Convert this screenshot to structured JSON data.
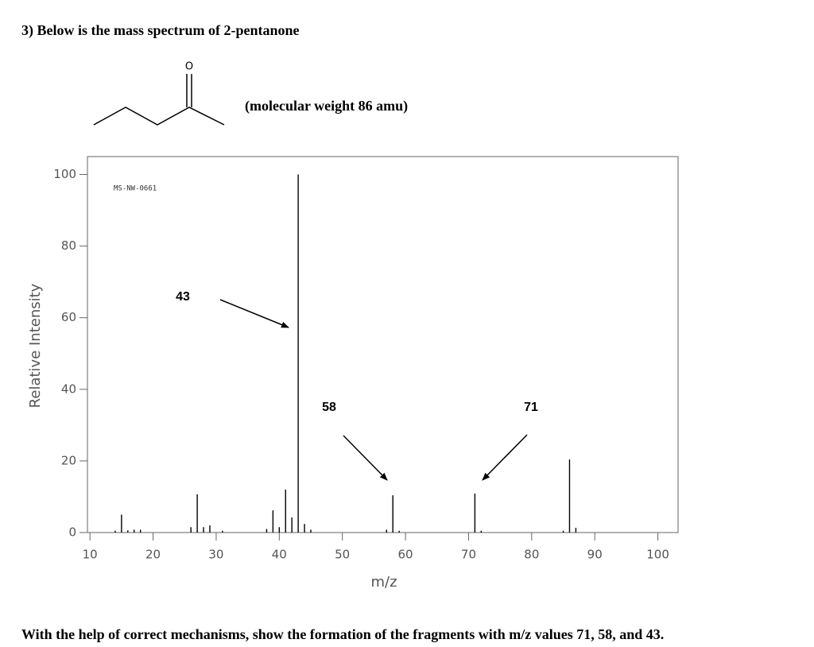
{
  "header": {
    "title": "3) Below is the mass spectrum of 2-pentanone"
  },
  "structure": {
    "atom": "O",
    "caption": "(molecular weight 86 amu)"
  },
  "chart_data": {
    "type": "bar",
    "color": "#000000",
    "id_label": "MS-NW-0661",
    "xlabel": "m/z",
    "ylabel": "Relative Intensity",
    "x": [
      14,
      15,
      16,
      17,
      18,
      26,
      27,
      28,
      29,
      31,
      38,
      39,
      40,
      41,
      42,
      43,
      44,
      45,
      57,
      58,
      59,
      71,
      72,
      85,
      86,
      87
    ],
    "values": [
      0.5,
      5,
      0.6,
      0.8,
      0.8,
      1.5,
      10.7,
      1.5,
      2,
      0.5,
      1,
      6.2,
      1.5,
      12,
      4.2,
      100,
      2.4,
      0.8,
      0.8,
      10.4,
      0.5,
      10.9,
      0.5,
      0.5,
      20.4,
      1.3
    ],
    "xlim": [
      9.6,
      103.2
    ],
    "ylim": [
      0,
      105
    ],
    "xticks": [
      10,
      20,
      30,
      40,
      50,
      60,
      70,
      80,
      90,
      100
    ],
    "yticks": [
      0,
      20,
      40,
      60,
      80,
      100
    ],
    "annotations": [
      "43",
      "58",
      "71"
    ]
  },
  "footer": {
    "question": "With the help of correct mechanisms, show the formation of the fragments with m/z values 71, 58, and 43."
  }
}
